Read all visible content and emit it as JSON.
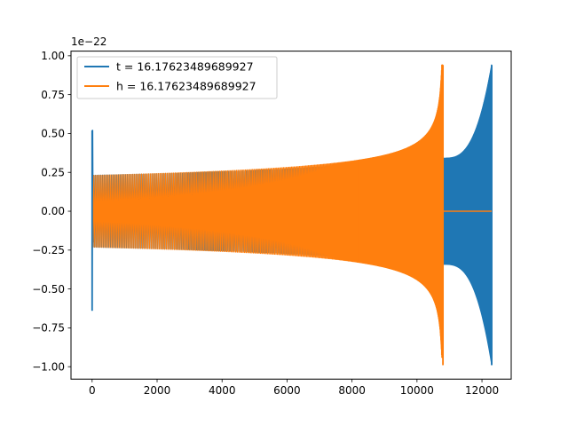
{
  "chart_data": {
    "type": "line",
    "offset_label": "1e−22",
    "xlim": [
      -650,
      12900
    ],
    "ylim": [
      -1.08,
      1.03
    ],
    "x_ticks": [
      0,
      2000,
      4000,
      6000,
      8000,
      10000,
      12000
    ],
    "x_tick_labels": [
      "0",
      "2000",
      "4000",
      "6000",
      "8000",
      "10000",
      "12000"
    ],
    "y_ticks": [
      -1.0,
      -0.75,
      -0.5,
      -0.25,
      0.0,
      0.25,
      0.5,
      0.75,
      1.0
    ],
    "y_tick_labels": [
      "−1.00",
      "−0.75",
      "−0.50",
      "−0.25",
      "0.00",
      "0.25",
      "0.50",
      "0.75",
      "1.00"
    ],
    "grid": false,
    "legend_position": "top-left",
    "series": [
      {
        "name": "t = 16.17623489689927",
        "color": "#1f77b4",
        "x_range": [
          0,
          12300
        ],
        "merger_x": 12300,
        "initial_spike": [
          -0.64,
          0.52
        ],
        "start_amplitude": 0.23,
        "peak_amplitude": 0.94,
        "min_value": -0.99,
        "ringdown_amplitude": 0.34
      },
      {
        "name": "h = 16.17623489689927",
        "color": "#ff7f0e",
        "x_range": [
          0,
          10800
        ],
        "merger_x": 10800,
        "start_amplitude": 0.23,
        "peak_amplitude": 0.94,
        "min_value": -0.99,
        "post_merger_value": 0.0
      }
    ]
  }
}
